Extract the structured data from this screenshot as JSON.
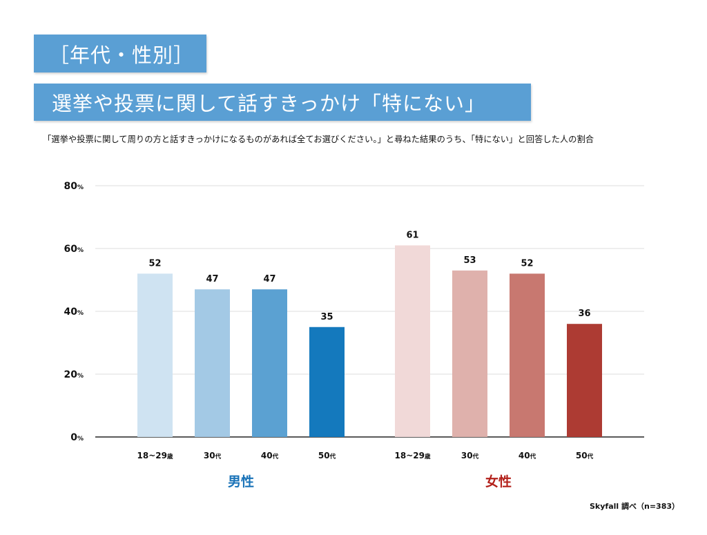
{
  "header": {
    "category_tag": "［年代・性別］",
    "title_tag": "選挙や投票に関して話すきっかけ「特にない」"
  },
  "description": "「選挙や投票に関して周りの方と話すきっかけになるものがあれば全てお選びください。」と尋ねた結果のうち、「特にない」と回答した人の割合",
  "source_note": "Skyfall 調べ（n=383）",
  "chart_data": {
    "type": "bar",
    "ylim": [
      0,
      80
    ],
    "yticks": [
      0,
      20,
      40,
      60,
      80
    ],
    "ytick_unit": "%",
    "grid": true,
    "groups": [
      {
        "name": "男性",
        "color": "#1a73b8",
        "categories": [
          "18~29歳",
          "30代",
          "40代",
          "50代"
        ],
        "values": [
          52,
          47,
          47,
          35
        ],
        "bar_colors": [
          "#cfe3f2",
          "#a3c9e5",
          "#5ba1d2",
          "#1479bd"
        ]
      },
      {
        "name": "女性",
        "color": "#b3211b",
        "categories": [
          "18~29歳",
          "30代",
          "40代",
          "50代"
        ],
        "values": [
          61,
          53,
          52,
          36
        ],
        "bar_colors": [
          "#f1d9d8",
          "#dfb1ac",
          "#c87870",
          "#ad3b33"
        ]
      }
    ]
  }
}
